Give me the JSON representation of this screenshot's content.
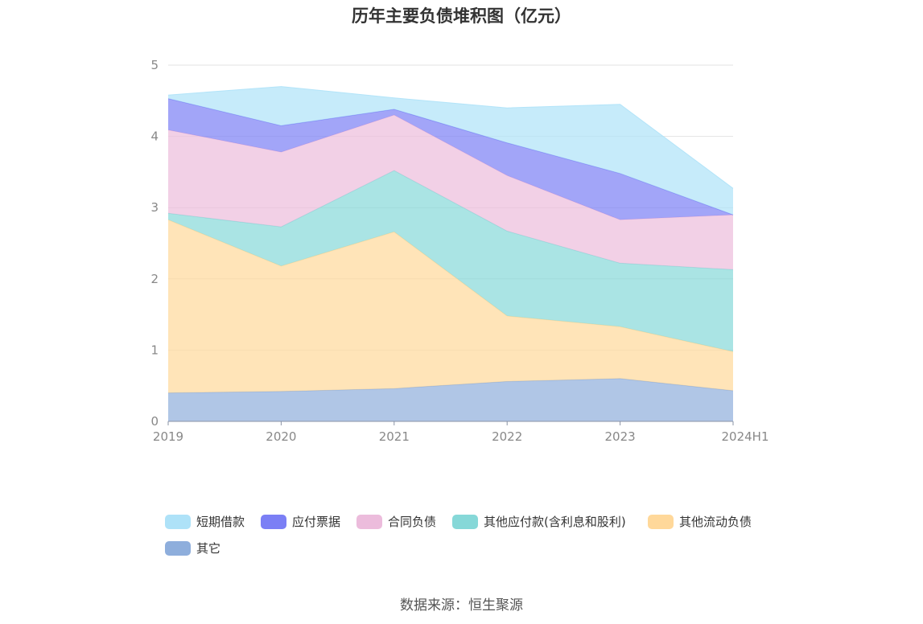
{
  "chart_data": {
    "type": "area",
    "title": "历年主要负债堆积图（亿元）",
    "categories": [
      "2019",
      "2020",
      "2021",
      "2022",
      "2023",
      "2024H1"
    ],
    "ylim": [
      0,
      5
    ],
    "yticks": [
      0,
      1,
      2,
      3,
      4,
      5
    ],
    "grid": true,
    "legend_position": "bottom",
    "stacked": true,
    "series": [
      {
        "name": "其它",
        "color": "#8eaedc",
        "values": [
          0.4,
          0.42,
          0.46,
          0.56,
          0.6,
          0.43
        ]
      },
      {
        "name": "其他流动负债",
        "color": "#ffd89a",
        "values": [
          2.43,
          1.76,
          2.2,
          0.92,
          0.73,
          0.55
        ]
      },
      {
        "name": "其他应付款(含利息和股利)",
        "color": "#86d8d8",
        "values": [
          0.09,
          0.55,
          0.86,
          1.19,
          0.89,
          1.15
        ]
      },
      {
        "name": "合同负债",
        "color": "#ecbcdc",
        "values": [
          1.17,
          1.05,
          0.78,
          0.78,
          0.61,
          0.77
        ]
      },
      {
        "name": "应付票据",
        "color": "#7b7ff5",
        "values": [
          0.44,
          0.37,
          0.08,
          0.46,
          0.65,
          0.0
        ]
      },
      {
        "name": "短期借款",
        "color": "#aee2f8",
        "values": [
          0.05,
          0.55,
          0.16,
          0.49,
          0.97,
          0.37
        ]
      }
    ]
  },
  "source": "数据来源：恒生聚源"
}
